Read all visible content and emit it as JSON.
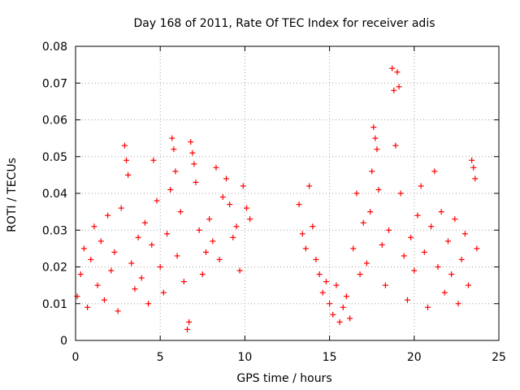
{
  "chart_data": {
    "type": "scatter",
    "title": "Day 168 of 2011, Rate Of TEC Index for receiver adis",
    "xlabel": "GPS time / hours",
    "ylabel": "ROTI / TECUs",
    "xlim": [
      0,
      25
    ],
    "ylim": [
      0,
      0.08
    ],
    "grid": true,
    "xticks": [
      0,
      5,
      10,
      15,
      20,
      25
    ],
    "xtick_labels": [
      "0",
      "5",
      "10",
      "15",
      "20",
      "25"
    ],
    "yticks": [
      0,
      0.01,
      0.02,
      0.03,
      0.04,
      0.05,
      0.06,
      0.07,
      0.08
    ],
    "ytick_labels": [
      "0",
      "0.01",
      "0.02",
      "0.03",
      "0.04",
      "0.05",
      "0.06",
      "0.07",
      "0.08"
    ],
    "marker": "+",
    "color": "#ff0000",
    "series": [
      {
        "name": "ROTI",
        "points": [
          [
            0.1,
            0.012
          ],
          [
            0.3,
            0.018
          ],
          [
            0.5,
            0.025
          ],
          [
            0.7,
            0.009
          ],
          [
            0.9,
            0.022
          ],
          [
            1.1,
            0.031
          ],
          [
            1.3,
            0.015
          ],
          [
            1.5,
            0.027
          ],
          [
            1.7,
            0.011
          ],
          [
            1.9,
            0.034
          ],
          [
            2.1,
            0.019
          ],
          [
            2.3,
            0.024
          ],
          [
            2.5,
            0.008
          ],
          [
            2.7,
            0.036
          ],
          [
            2.9,
            0.053
          ],
          [
            3.0,
            0.049
          ],
          [
            3.1,
            0.045
          ],
          [
            3.3,
            0.021
          ],
          [
            3.5,
            0.014
          ],
          [
            3.7,
            0.028
          ],
          [
            3.9,
            0.017
          ],
          [
            4.1,
            0.032
          ],
          [
            4.3,
            0.01
          ],
          [
            4.5,
            0.026
          ],
          [
            4.6,
            0.049
          ],
          [
            4.8,
            0.038
          ],
          [
            5.0,
            0.02
          ],
          [
            5.2,
            0.013
          ],
          [
            5.4,
            0.029
          ],
          [
            5.6,
            0.041
          ],
          [
            5.7,
            0.055
          ],
          [
            5.8,
            0.052
          ],
          [
            5.9,
            0.046
          ],
          [
            6.0,
            0.023
          ],
          [
            6.2,
            0.035
          ],
          [
            6.4,
            0.016
          ],
          [
            6.6,
            0.003
          ],
          [
            6.7,
            0.005
          ],
          [
            6.8,
            0.054
          ],
          [
            6.9,
            0.051
          ],
          [
            7.0,
            0.048
          ],
          [
            7.1,
            0.043
          ],
          [
            7.3,
            0.03
          ],
          [
            7.5,
            0.018
          ],
          [
            7.7,
            0.024
          ],
          [
            7.9,
            0.033
          ],
          [
            8.1,
            0.027
          ],
          [
            8.3,
            0.047
          ],
          [
            8.5,
            0.022
          ],
          [
            8.7,
            0.039
          ],
          [
            8.9,
            0.044
          ],
          [
            9.1,
            0.037
          ],
          [
            9.3,
            0.028
          ],
          [
            9.5,
            0.031
          ],
          [
            9.7,
            0.019
          ],
          [
            9.9,
            0.042
          ],
          [
            10.1,
            0.036
          ],
          [
            10.3,
            0.033
          ],
          [
            13.2,
            0.037
          ],
          [
            13.4,
            0.029
          ],
          [
            13.6,
            0.025
          ],
          [
            13.8,
            0.042
          ],
          [
            14.0,
            0.031
          ],
          [
            14.2,
            0.022
          ],
          [
            14.4,
            0.018
          ],
          [
            14.6,
            0.013
          ],
          [
            14.8,
            0.016
          ],
          [
            15.0,
            0.01
          ],
          [
            15.2,
            0.007
          ],
          [
            15.4,
            0.015
          ],
          [
            15.6,
            0.005
          ],
          [
            15.8,
            0.009
          ],
          [
            16.0,
            0.012
          ],
          [
            16.2,
            0.006
          ],
          [
            16.4,
            0.025
          ],
          [
            16.6,
            0.04
          ],
          [
            16.8,
            0.018
          ],
          [
            17.0,
            0.032
          ],
          [
            17.2,
            0.021
          ],
          [
            17.4,
            0.035
          ],
          [
            17.5,
            0.046
          ],
          [
            17.6,
            0.058
          ],
          [
            17.7,
            0.055
          ],
          [
            17.8,
            0.052
          ],
          [
            17.9,
            0.041
          ],
          [
            18.1,
            0.026
          ],
          [
            18.3,
            0.015
          ],
          [
            18.5,
            0.03
          ],
          [
            18.7,
            0.074
          ],
          [
            18.8,
            0.068
          ],
          [
            18.9,
            0.053
          ],
          [
            19.0,
            0.073
          ],
          [
            19.1,
            0.069
          ],
          [
            19.2,
            0.04
          ],
          [
            19.4,
            0.023
          ],
          [
            19.6,
            0.011
          ],
          [
            19.8,
            0.028
          ],
          [
            20.0,
            0.019
          ],
          [
            20.2,
            0.034
          ],
          [
            20.4,
            0.042
          ],
          [
            20.6,
            0.024
          ],
          [
            20.8,
            0.009
          ],
          [
            21.0,
            0.031
          ],
          [
            21.2,
            0.046
          ],
          [
            21.4,
            0.02
          ],
          [
            21.6,
            0.035
          ],
          [
            21.8,
            0.013
          ],
          [
            22.0,
            0.027
          ],
          [
            22.2,
            0.018
          ],
          [
            22.4,
            0.033
          ],
          [
            22.6,
            0.01
          ],
          [
            22.8,
            0.022
          ],
          [
            23.0,
            0.029
          ],
          [
            23.2,
            0.015
          ],
          [
            23.4,
            0.049
          ],
          [
            23.5,
            0.047
          ],
          [
            23.6,
            0.044
          ],
          [
            23.7,
            0.025
          ]
        ]
      }
    ]
  }
}
